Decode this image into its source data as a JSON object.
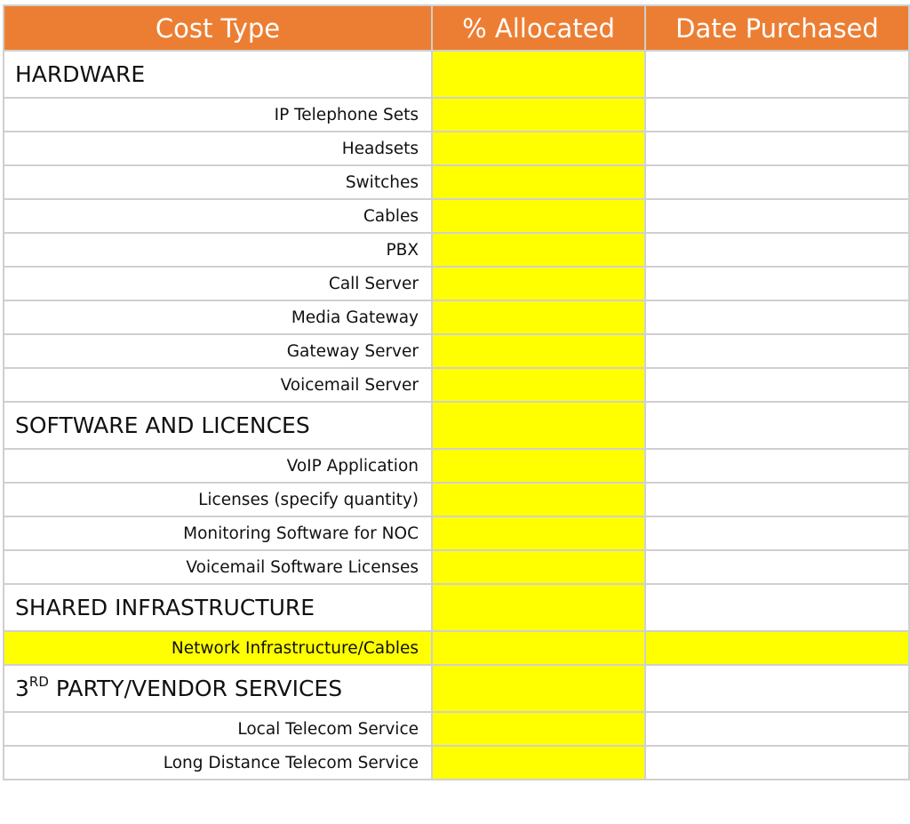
{
  "colors": {
    "header": "#ec7e33",
    "highlight": "#ffff00",
    "border": "#cfcfcf"
  },
  "headers": [
    "Cost Type",
    "% Allocated",
    "Date Purchased"
  ],
  "sections": [
    {
      "title": "HARDWARE",
      "items": [
        "IP Telephone Sets",
        "Headsets",
        "Switches",
        "Cables",
        "PBX",
        "Call Server",
        "Media Gateway",
        "Gateway Server",
        "Voicemail Server"
      ]
    },
    {
      "title": "SOFTWARE AND LICENCES",
      "items": [
        "VoIP Application",
        "Licenses (specify quantity)",
        "Monitoring Software for NOC",
        "Voicemail Software Licenses"
      ]
    },
    {
      "title": "SHARED INFRASTRUCTURE",
      "items": [
        "Network Infrastructure/Cables"
      ],
      "highlighted_row": 0
    },
    {
      "title": "PARTY/VENDOR SERVICES",
      "title_prefix": "3",
      "title_superscript": "RD",
      "items": [
        "Local Telecom Service",
        "Long Distance Telecom Service"
      ]
    }
  ]
}
